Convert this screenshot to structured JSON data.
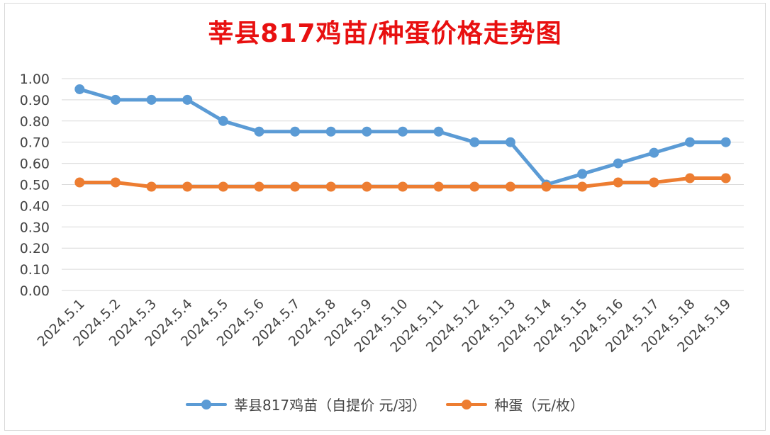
{
  "chart_data": {
    "type": "line",
    "title": "莘县817鸡苗/种蛋价格走势图",
    "categories": [
      "2024.5.1",
      "2024.5.2",
      "2024.5.3",
      "2024.5.4",
      "2024.5.5",
      "2024.5.6",
      "2024.5.7",
      "2024.5.8",
      "2024.5.9",
      "2024.5.10",
      "2024.5.11",
      "2024.5.12",
      "2024.5.13",
      "2024.5.14",
      "2024.5.15",
      "2024.5.16",
      "2024.5.17",
      "2024.5.18",
      "2024.5.19"
    ],
    "yticks": [
      "0.00",
      "0.10",
      "0.20",
      "0.30",
      "0.40",
      "0.50",
      "0.60",
      "0.70",
      "0.80",
      "0.90",
      "1.00"
    ],
    "ylim": [
      0,
      1.0
    ],
    "grid": true,
    "legend_position": "bottom",
    "series": [
      {
        "name": "莘县817鸡苗（自提价 元/羽）",
        "color": "#5b9bd5",
        "values": [
          0.95,
          0.9,
          0.9,
          0.9,
          0.8,
          0.75,
          0.75,
          0.75,
          0.75,
          0.75,
          0.75,
          0.7,
          0.7,
          0.5,
          0.55,
          0.6,
          0.65,
          0.7,
          0.7
        ]
      },
      {
        "name": "种蛋（元/枚）",
        "color": "#ed7d31",
        "values": [
          0.51,
          0.51,
          0.49,
          0.49,
          0.49,
          0.49,
          0.49,
          0.49,
          0.49,
          0.49,
          0.49,
          0.49,
          0.49,
          0.49,
          0.49,
          0.51,
          0.51,
          0.53,
          0.53
        ]
      }
    ]
  }
}
